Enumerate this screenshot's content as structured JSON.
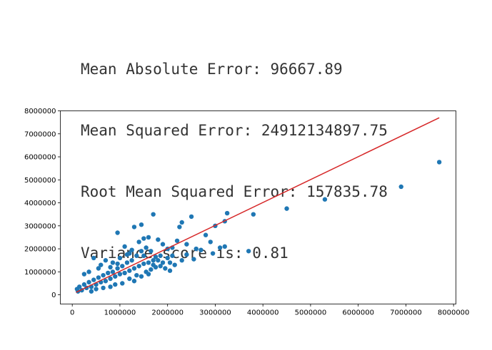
{
  "metrics": [
    "Mean Absolute Error: 96667.89",
    "Mean Squared Error: 24912134897.75",
    "Root Mean Squared Error: 157835.78",
    "Variance score is: 0.81"
  ],
  "chart_data": {
    "type": "scatter",
    "title": "",
    "xlabel": "",
    "ylabel": "",
    "xlim": [
      -250000,
      8050000
    ],
    "ylim": [
      -400000,
      8000000
    ],
    "xticks": [
      0,
      1000000,
      2000000,
      3000000,
      4000000,
      5000000,
      6000000,
      7000000,
      8000000
    ],
    "yticks": [
      0,
      1000000,
      2000000,
      3000000,
      4000000,
      5000000,
      6000000,
      7000000,
      8000000
    ],
    "xtick_labels": [
      "0",
      "1000000",
      "2000000",
      "3000000",
      "4000000",
      "5000000",
      "6000000",
      "7000000",
      "8000000"
    ],
    "ytick_labels": [
      "0",
      "1000000",
      "2000000",
      "3000000",
      "4000000",
      "5000000",
      "6000000",
      "7000000",
      "8000000"
    ],
    "grid": false,
    "colors": {
      "points": "#1f77b4",
      "fit_line": "#d62728"
    },
    "fit_line": {
      "x": [
        80000,
        7700000
      ],
      "y": [
        110000,
        7700000
      ]
    },
    "points": [
      [
        7700000,
        5770000
      ],
      [
        6900000,
        4700000
      ],
      [
        5300000,
        4150000
      ],
      [
        4500000,
        3750000
      ],
      [
        3800000,
        3500000
      ],
      [
        3700000,
        1900000
      ],
      [
        3250000,
        3550000
      ],
      [
        3200000,
        3200000
      ],
      [
        3200000,
        2100000
      ],
      [
        3100000,
        2050000
      ],
      [
        3000000,
        3000000
      ],
      [
        2950000,
        1800000
      ],
      [
        2900000,
        2300000
      ],
      [
        2800000,
        2600000
      ],
      [
        2700000,
        1950000
      ],
      [
        2500000,
        3400000
      ],
      [
        2400000,
        2200000
      ],
      [
        2300000,
        3150000
      ],
      [
        2250000,
        2950000
      ],
      [
        2600000,
        2000000
      ],
      [
        2550000,
        1550000
      ],
      [
        2400000,
        1750000
      ],
      [
        2200000,
        2350000
      ],
      [
        2100000,
        2050000
      ],
      [
        1700000,
        3500000
      ],
      [
        1450000,
        3050000
      ],
      [
        1300000,
        2950000
      ],
      [
        950000,
        2700000
      ],
      [
        1900000,
        2200000
      ],
      [
        1800000,
        2400000
      ],
      [
        1600000,
        2500000
      ],
      [
        1500000,
        2450000
      ],
      [
        1400000,
        2300000
      ],
      [
        1700000,
        1500000
      ],
      [
        1600000,
        900000
      ],
      [
        1300000,
        600000
      ],
      [
        1550000,
        2050000
      ],
      [
        1200000,
        1800000
      ],
      [
        1100000,
        2100000
      ],
      [
        2050000,
        1400000
      ],
      [
        2150000,
        1300000
      ],
      [
        2300000,
        1500000
      ],
      [
        2100000,
        1700000
      ],
      [
        2000000,
        2000000
      ],
      [
        1850000,
        1700000
      ],
      [
        1750000,
        1650000
      ],
      [
        1650000,
        1900000
      ],
      [
        1500000,
        1700000
      ],
      [
        1450000,
        1900000
      ],
      [
        1350000,
        1700000
      ],
      [
        1250000,
        1500000
      ],
      [
        1150000,
        1400000
      ],
      [
        1050000,
        1250000
      ],
      [
        950000,
        1150000
      ],
      [
        850000,
        1000000
      ],
      [
        750000,
        950000
      ],
      [
        650000,
        850000
      ],
      [
        550000,
        750000
      ],
      [
        450000,
        650000
      ],
      [
        350000,
        550000
      ],
      [
        250000,
        450000
      ],
      [
        150000,
        350000
      ],
      [
        100000,
        250000
      ],
      [
        120000,
        150000
      ],
      [
        200000,
        200000
      ],
      [
        300000,
        300000
      ],
      [
        400000,
        350000
      ],
      [
        500000,
        450000
      ],
      [
        600000,
        550000
      ],
      [
        700000,
        600000
      ],
      [
        800000,
        700000
      ],
      [
        900000,
        800000
      ],
      [
        1000000,
        900000
      ],
      [
        1100000,
        950000
      ],
      [
        1200000,
        1050000
      ],
      [
        1300000,
        1150000
      ],
      [
        1400000,
        1250000
      ],
      [
        1500000,
        1350000
      ],
      [
        1600000,
        1400000
      ],
      [
        1700000,
        1300000
      ],
      [
        1800000,
        1500000
      ],
      [
        1900000,
        1400000
      ],
      [
        2000000,
        1600000
      ],
      [
        450000,
        1600000
      ],
      [
        600000,
        1300000
      ],
      [
        700000,
        1500000
      ],
      [
        850000,
        1400000
      ],
      [
        1000000,
        1600000
      ],
      [
        1150000,
        1750000
      ],
      [
        1250000,
        1950000
      ],
      [
        350000,
        1000000
      ],
      [
        250000,
        900000
      ],
      [
        550000,
        1150000
      ],
      [
        800000,
        1200000
      ],
      [
        950000,
        1350000
      ],
      [
        400000,
        150000
      ],
      [
        500000,
        250000
      ],
      [
        650000,
        300000
      ],
      [
        800000,
        350000
      ],
      [
        900000,
        450000
      ],
      [
        1050000,
        500000
      ],
      [
        1200000,
        700000
      ],
      [
        1350000,
        850000
      ],
      [
        1450000,
        800000
      ],
      [
        1550000,
        1000000
      ],
      [
        1650000,
        1100000
      ],
      [
        1750000,
        1200000
      ],
      [
        1850000,
        1250000
      ],
      [
        2050000,
        1050000
      ],
      [
        1950000,
        1150000
      ]
    ]
  }
}
